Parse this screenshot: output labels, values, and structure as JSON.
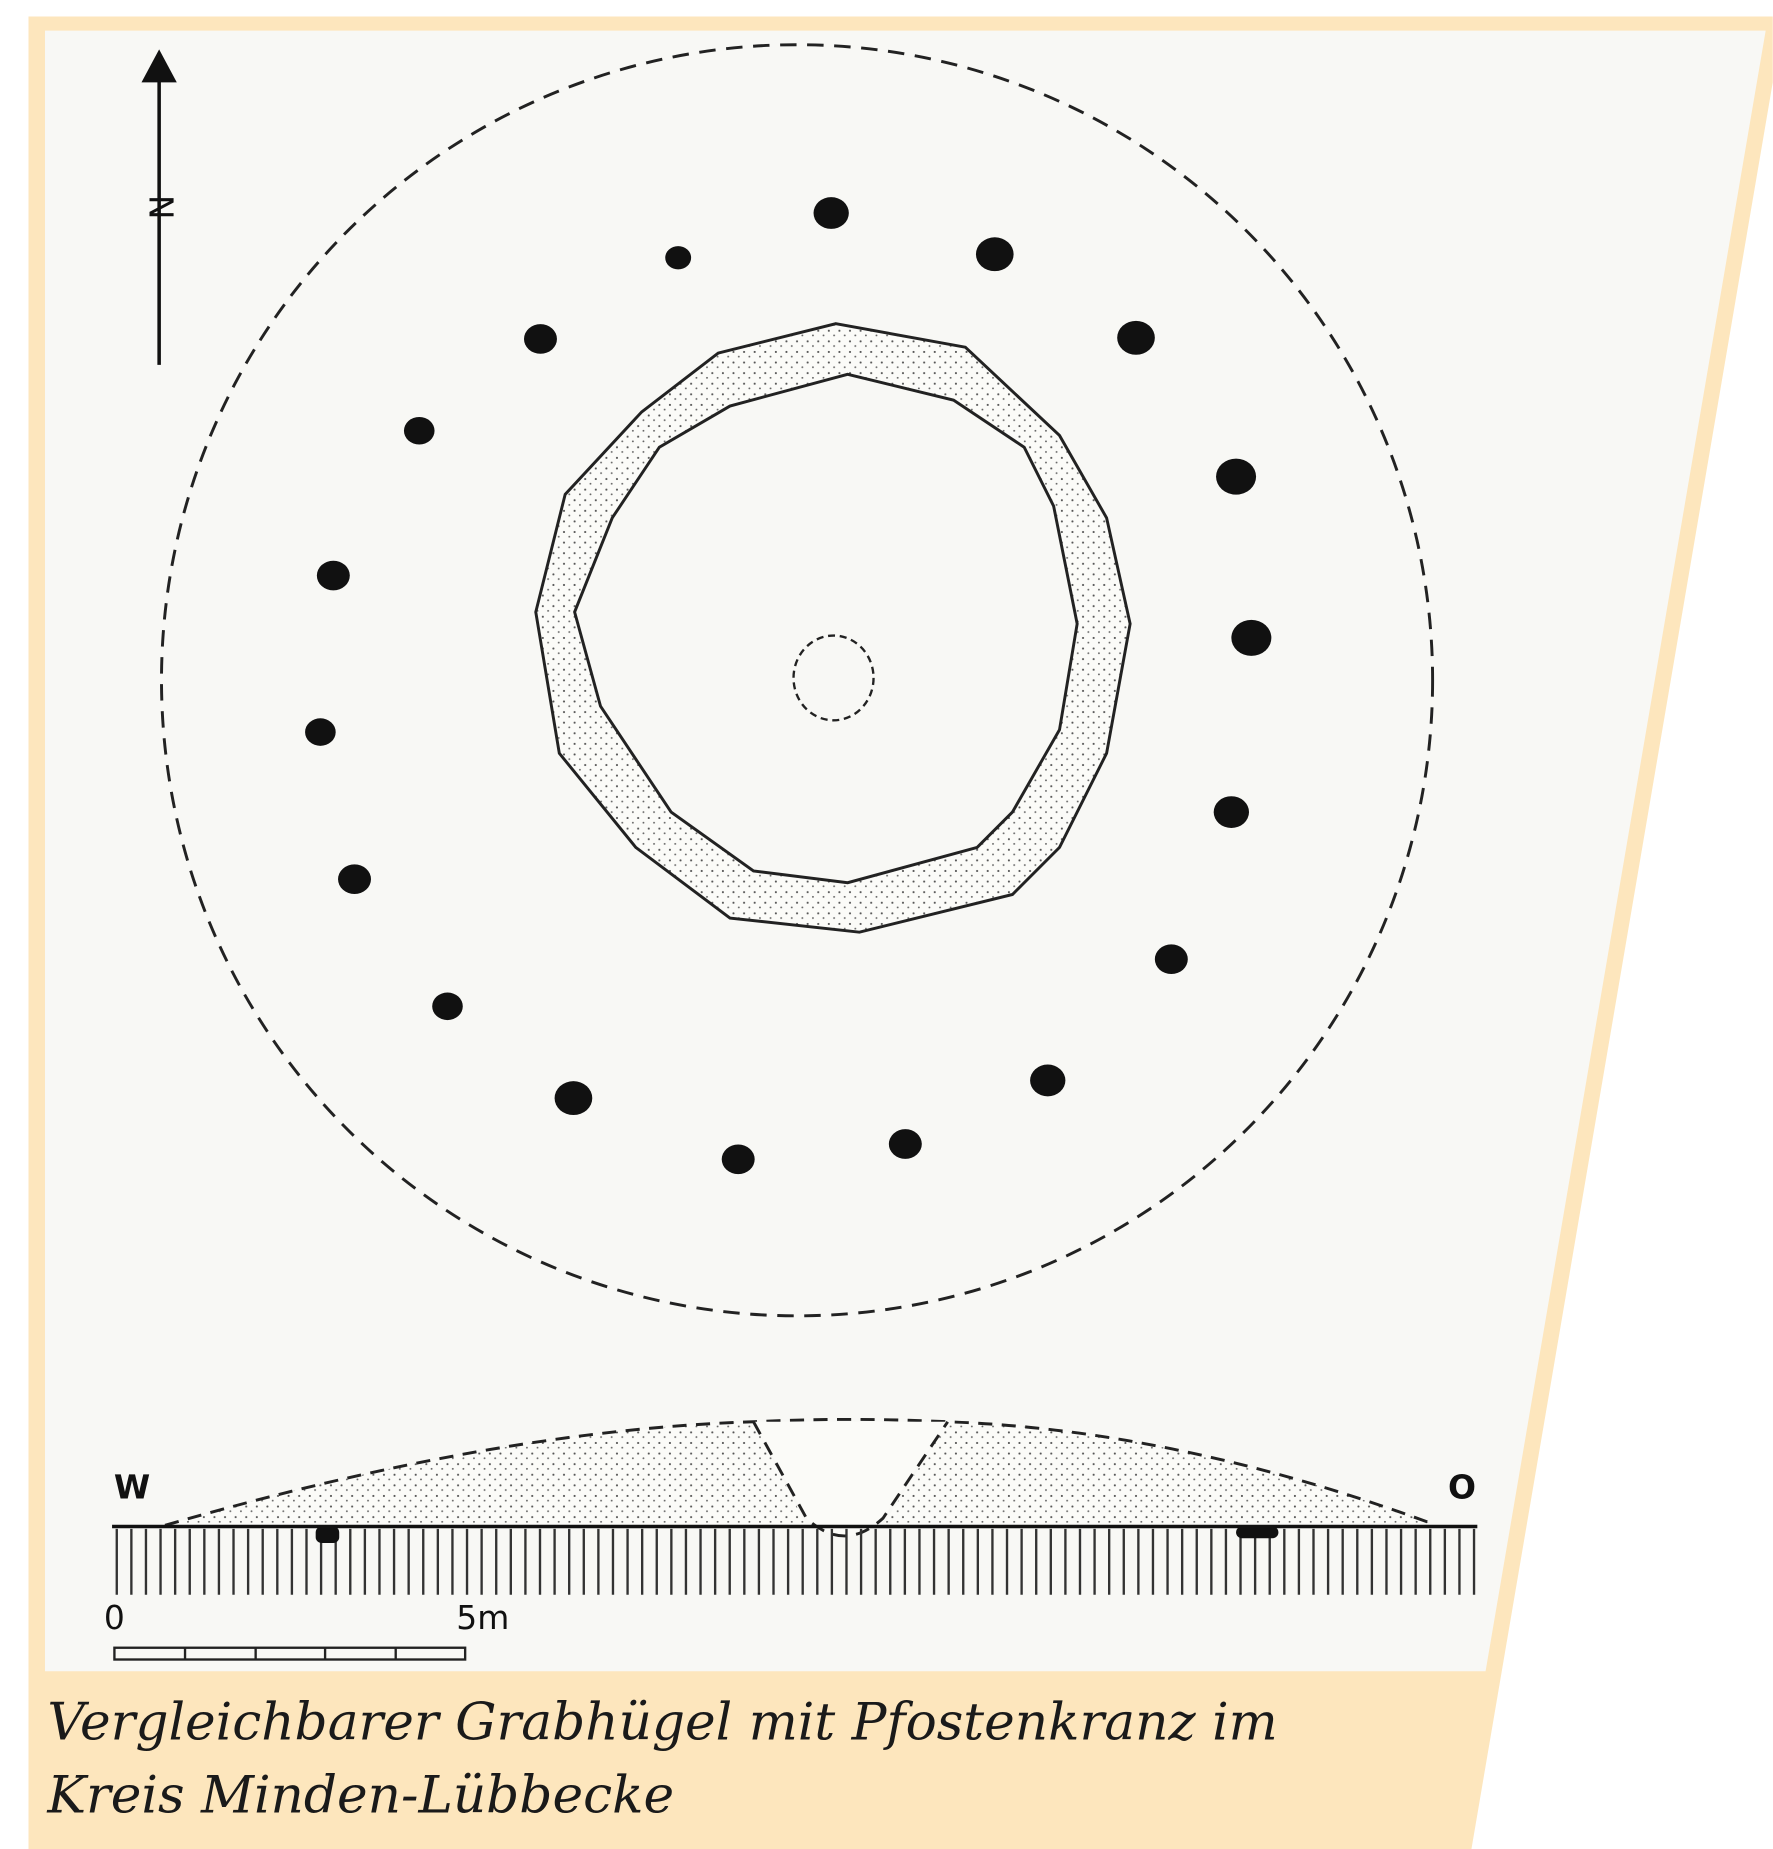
{
  "labels": {
    "north": "N",
    "west": "W",
    "east": "O"
  },
  "scale": {
    "start": "0",
    "end": "5m"
  },
  "caption": {
    "lines": [
      "Vergleichbarer Grabhügel mit Pfostenkranz im",
      "Kreis Minden-Lübbecke"
    ]
  }
}
